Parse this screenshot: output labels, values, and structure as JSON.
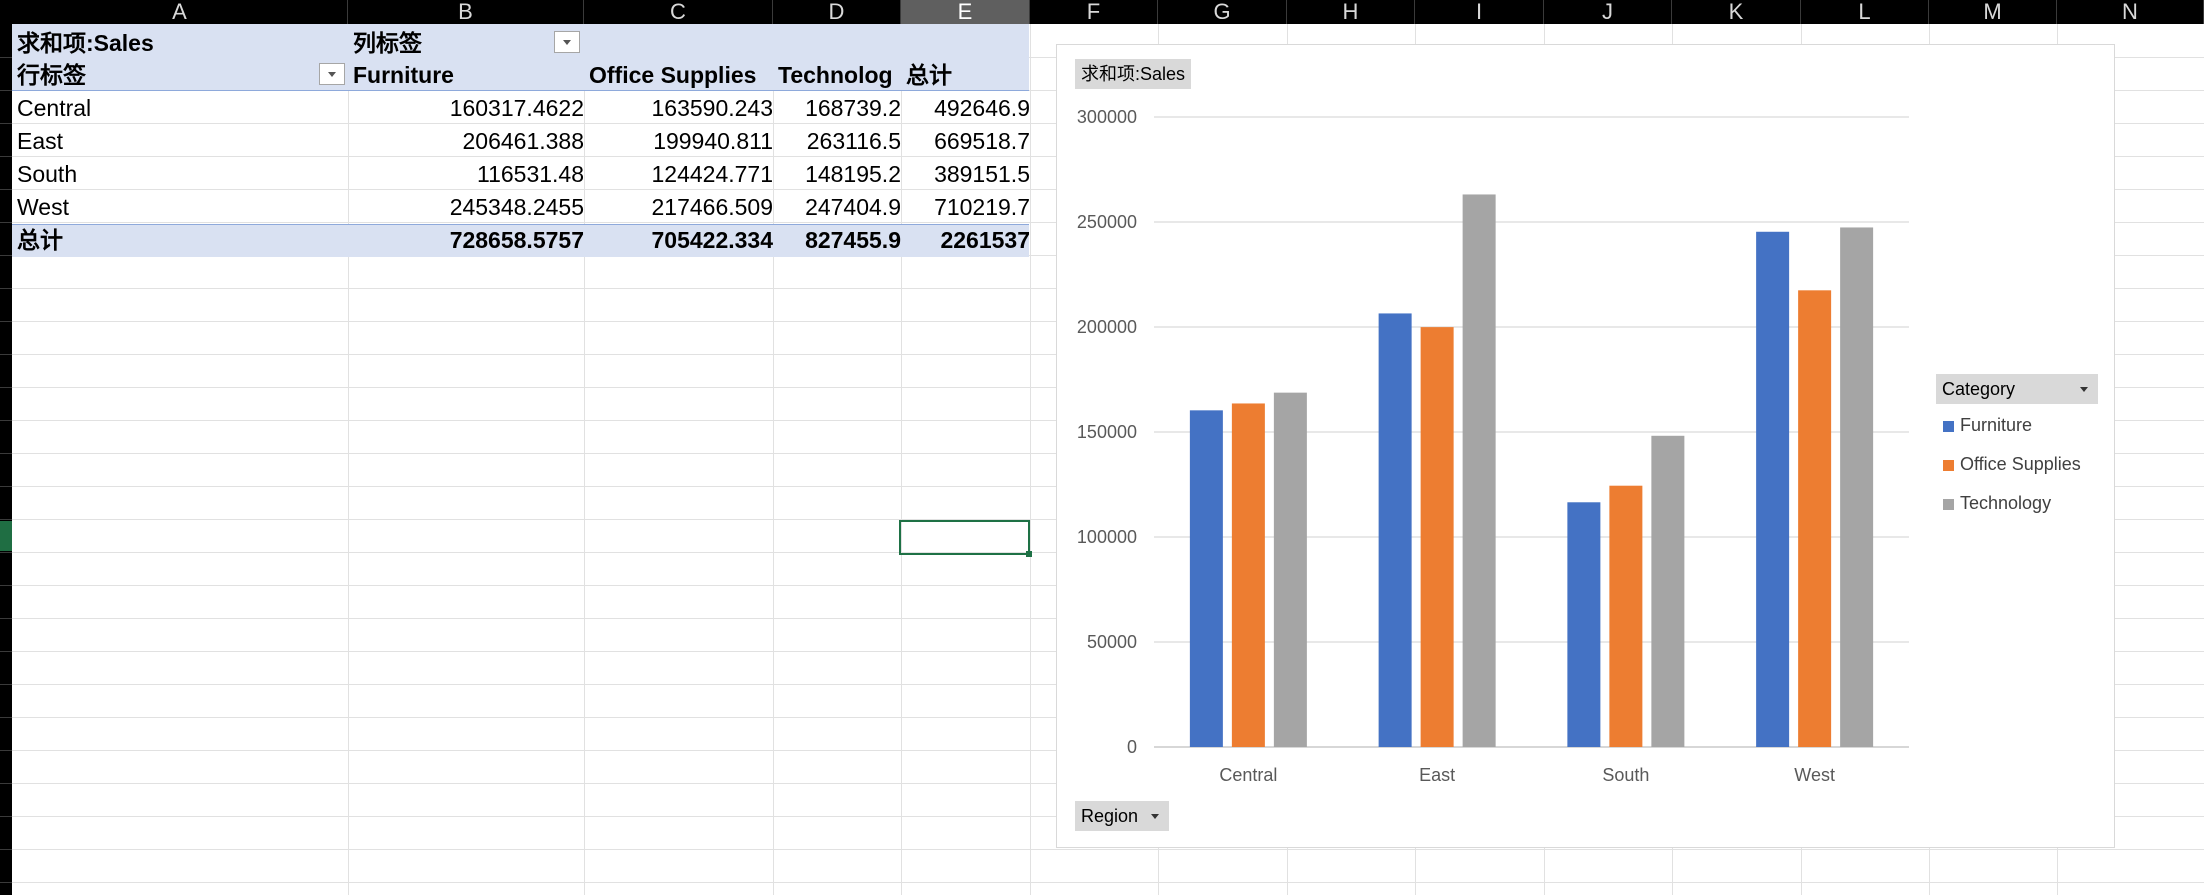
{
  "columns": [
    "A",
    "B",
    "C",
    "D",
    "E",
    "F",
    "G",
    "H",
    "I",
    "J",
    "K",
    "L",
    "M",
    "N"
  ],
  "selected_column": "E",
  "pivot": {
    "value_field": "求和项:Sales",
    "col_label": "列标签",
    "row_label": "行标签",
    "col_headers": [
      "Furniture",
      "Office Supplies",
      "Technolog",
      "总计"
    ],
    "rows": [
      {
        "region": "Central",
        "values": [
          "160317.4622",
          "163590.243",
          "168739.2",
          "492646.9"
        ]
      },
      {
        "region": "East",
        "values": [
          "206461.388",
          "199940.811",
          "263116.5",
          "669518.7"
        ]
      },
      {
        "region": "South",
        "values": [
          "116531.48",
          "124424.771",
          "148195.2",
          "389151.5"
        ]
      },
      {
        "region": "West",
        "values": [
          "245348.2455",
          "217466.509",
          "247404.9",
          "710219.7"
        ]
      }
    ],
    "total": {
      "label": "总计",
      "values": [
        "728658.5757",
        "705422.334",
        "827455.9",
        "2261537"
      ]
    }
  },
  "chart_field_button": "求和项:Sales",
  "legend_field_button": "Category",
  "axis_field_button": "Region",
  "chart_data": {
    "type": "bar",
    "categories": [
      "Central",
      "East",
      "South",
      "West"
    ],
    "series": [
      {
        "name": "Furniture",
        "color": "#4472c4",
        "values": [
          160317.4622,
          206461.388,
          116531.48,
          245348.2455
        ]
      },
      {
        "name": "Office Supplies",
        "color": "#ed7d31",
        "values": [
          163590.243,
          199940.811,
          124424.771,
          217466.509
        ]
      },
      {
        "name": "Technology",
        "color": "#a5a5a5",
        "values": [
          168739.2,
          263116.5,
          148195.2,
          247404.9
        ]
      }
    ],
    "ylim": [
      0,
      300000
    ],
    "yticks": [
      "0",
      "50000",
      "100000",
      "150000",
      "200000",
      "250000",
      "300000"
    ],
    "grid": true,
    "legend_position": "right"
  }
}
